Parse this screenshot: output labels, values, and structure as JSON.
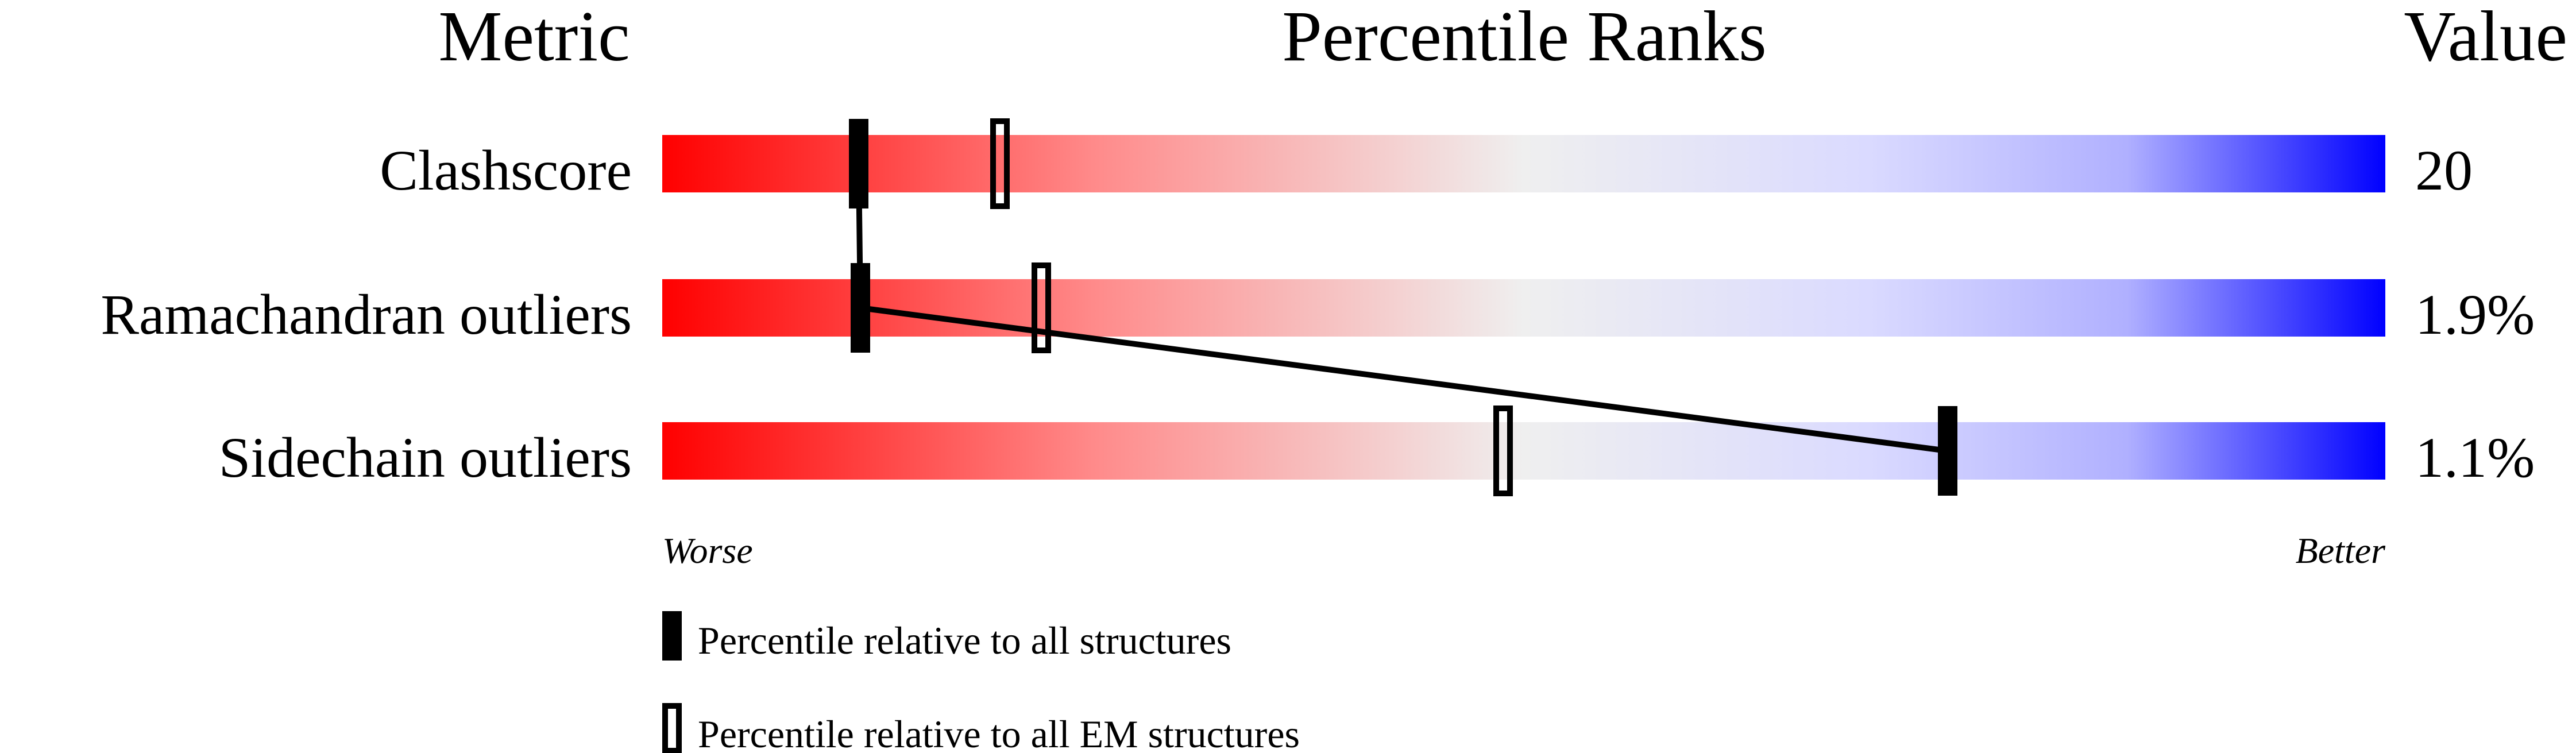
{
  "chart_data": {
    "type": "percentile-bar",
    "headers": {
      "metric": "Metric",
      "ranks": "Percentile Ranks",
      "value": "Value"
    },
    "xlim": [
      0,
      100
    ],
    "axis_left_label": "Worse",
    "axis_right_label": "Better",
    "metrics": [
      {
        "name": "Clashscore",
        "value": "20",
        "percentile_all": 11.4,
        "percentile_em": 19.6
      },
      {
        "name": "Ramachandran outliers",
        "value": "1.9%",
        "percentile_all": 11.5,
        "percentile_em": 22.0
      },
      {
        "name": "Sidechain outliers",
        "value": "1.1%",
        "percentile_all": 74.6,
        "percentile_em": 48.8
      }
    ],
    "legend": [
      {
        "marker": "filled",
        "label": "Percentile relative to all structures"
      },
      {
        "marker": "open",
        "label": "Percentile relative to all EM structures"
      }
    ],
    "colors": {
      "worse": "#ff0000",
      "middle": "#efefef",
      "better": "#0000ff",
      "marker": "#000000"
    }
  }
}
